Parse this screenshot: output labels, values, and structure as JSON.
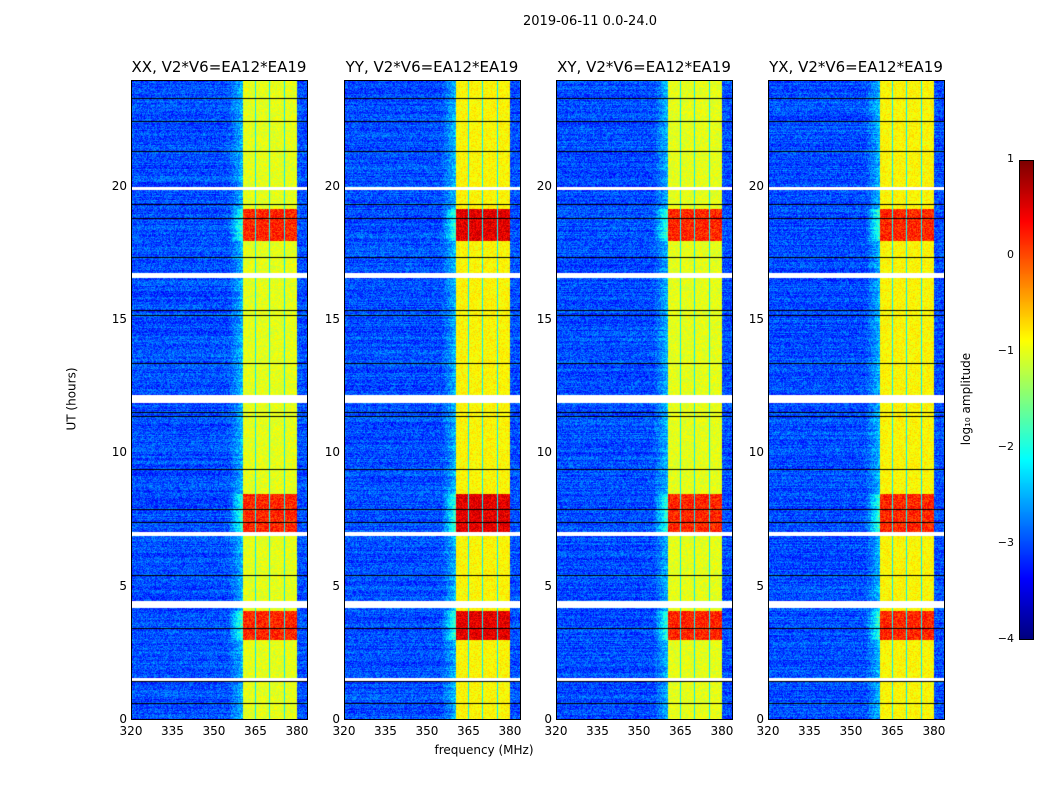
{
  "suptitle": "2019-06-11 0.0-24.0",
  "chart_data": {
    "type": "heatmap",
    "title": "2019-06-11 0.0-24.0",
    "xlabel": "frequency (MHz)",
    "ylabel": "UT (hours)",
    "xlim": [
      320,
      384
    ],
    "ylim": [
      0,
      24
    ],
    "xticks": [
      "320",
      "335",
      "350",
      "365",
      "380"
    ],
    "yticks": [
      "0",
      "5",
      "10",
      "15",
      "20"
    ],
    "panels": [
      {
        "title": "XX, V2*V6=EA12*EA19"
      },
      {
        "title": "YY, V2*V6=EA12*EA19"
      },
      {
        "title": "XY, V2*V6=EA12*EA19"
      },
      {
        "title": "YX, V2*V6=EA12*EA19"
      }
    ],
    "colorbar": {
      "label": "log₁₀ amplitude",
      "colormap": "jet",
      "range": [
        -4,
        1
      ],
      "ticks": [
        "1",
        "0",
        "−1",
        "−2",
        "−3",
        "−4"
      ]
    },
    "features": {
      "background_log_amp": -3,
      "rfi_band_mhz": [
        360.5,
        380
      ],
      "rfi_subband_edges_mhz": [
        360.5,
        365,
        370,
        375.5,
        380
      ],
      "rfi_band_log_amp": -1,
      "strong_rfi_hours": [
        [
          3.0,
          4.1
        ],
        [
          7.0,
          8.5
        ],
        [
          18.0,
          19.2
        ]
      ],
      "flagged_hours": [
        [
          1.45,
          1.55
        ],
        [
          4.2,
          4.45
        ],
        [
          6.9,
          7.05
        ],
        [
          11.9,
          12.2
        ],
        [
          16.6,
          16.8
        ],
        [
          19.9,
          20.05
        ]
      ]
    }
  }
}
